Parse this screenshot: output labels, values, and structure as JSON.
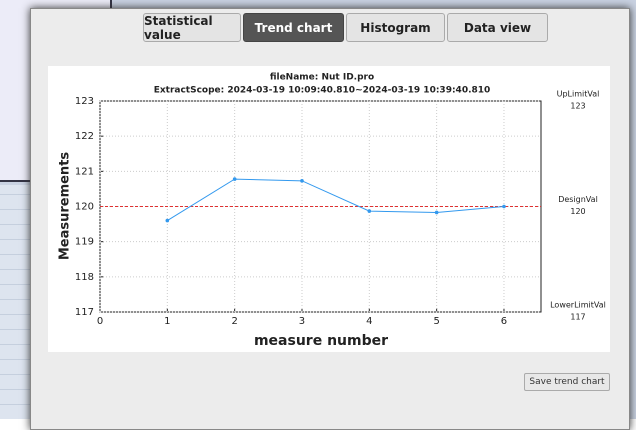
{
  "tabs": [
    {
      "label": "Statistical value",
      "selected": false
    },
    {
      "label": "Trend chart",
      "selected": true
    },
    {
      "label": "Histogram",
      "selected": false
    },
    {
      "label": "Data view",
      "selected": false
    }
  ],
  "button": "Save trend chart",
  "chart_data": {
    "type": "line",
    "title": "fileName: Nut ID.pro",
    "subtitle": "ExtractScope: 2024-03-19 10:09:40.810~2024-03-19 10:39:40.810",
    "x_label": "measure number",
    "y_label": "Measurements",
    "x": [
      1,
      2,
      3,
      4,
      5,
      6
    ],
    "series": [
      {
        "color": "#3399ee",
        "values": [
          119.6,
          120.78,
          120.73,
          119.87,
          119.83,
          120.0
        ]
      }
    ],
    "xlim": [
      0,
      6.55
    ],
    "xticks": [
      0,
      1,
      2,
      3,
      4,
      5,
      6
    ],
    "ylim": [
      117,
      123
    ],
    "yticks": [
      117,
      118,
      119,
      120,
      121,
      122,
      123
    ],
    "grid": true,
    "reference_lines": [
      {
        "label": "UpLimitVal",
        "value": 123
      },
      {
        "label": "DesignVal",
        "value": 120,
        "color": "#e03030"
      },
      {
        "label": "LowerLimitVal",
        "value": 117
      }
    ]
  }
}
